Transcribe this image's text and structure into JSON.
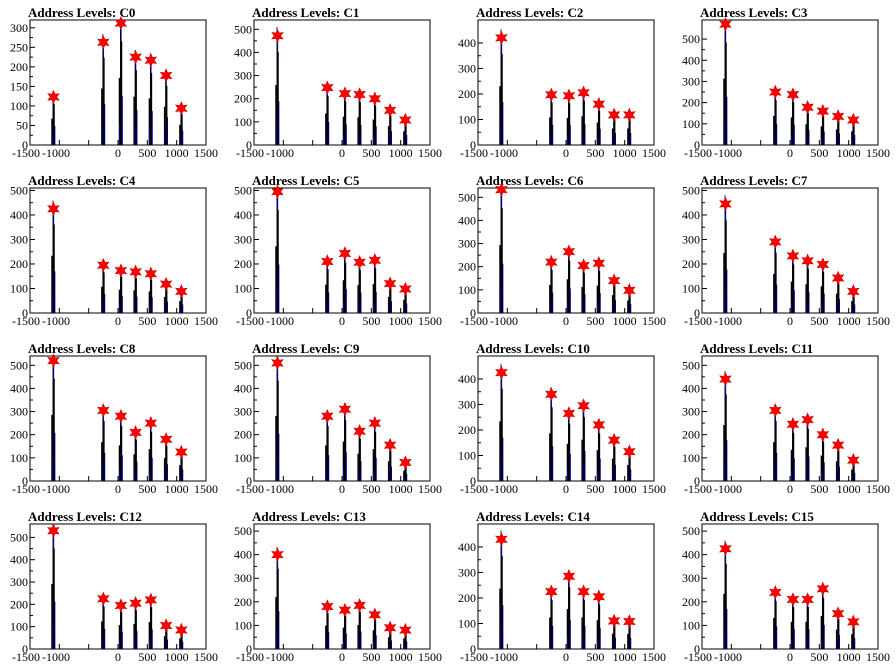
{
  "figure": {
    "title_prefix": "Address Levels: ",
    "x_ticks": [
      -1500,
      -1000,
      500,
      1000,
      1500
    ],
    "x_tick_labels": [
      "-1500",
      "-1000",
      "500",
      "1000",
      "1500"
    ],
    "x_tick_labels_center": [
      "0"
    ],
    "x_range": [
      -1500,
      1500
    ],
    "peak_x": [
      -1100,
      -250,
      50,
      300,
      560,
      820,
      1080
    ],
    "histogram_color": "#0000cc",
    "marker_color": "#ff0000",
    "marker_outline": "#cc0000"
  },
  "chart_data": [
    {
      "type": "bar",
      "title": "Address Levels: C0",
      "yticks": [
        0,
        50,
        100,
        150,
        200,
        250,
        300
      ],
      "ylim": [
        0,
        320
      ],
      "peaks_y": [
        123,
        263,
        312,
        225,
        217,
        178,
        94
      ]
    },
    {
      "type": "bar",
      "title": "Address Levels: C1",
      "yticks": [
        0,
        100,
        200,
        300,
        400,
        500
      ],
      "ylim": [
        0,
        540
      ],
      "peaks_y": [
        472,
        248,
        222,
        218,
        200,
        150,
        108
      ]
    },
    {
      "type": "bar",
      "title": "Address Levels: C2",
      "yticks": [
        0,
        100,
        200,
        300,
        400
      ],
      "ylim": [
        0,
        490
      ],
      "peaks_y": [
        420,
        197,
        193,
        205,
        160,
        118,
        118
      ]
    },
    {
      "type": "bar",
      "title": "Address Levels: C3",
      "yticks": [
        0,
        100,
        200,
        300,
        400,
        500
      ],
      "ylim": [
        0,
        590
      ],
      "peaks_y": [
        570,
        250,
        238,
        178,
        160,
        135,
        118
      ]
    },
    {
      "type": "bar",
      "title": "Address Levels: C4",
      "yticks": [
        0,
        100,
        200,
        300,
        400,
        500
      ],
      "ylim": [
        0,
        510
      ],
      "peaks_y": [
        425,
        195,
        173,
        168,
        160,
        118,
        88
      ]
    },
    {
      "type": "bar",
      "title": "Address Levels: C5",
      "yticks": [
        0,
        100,
        200,
        300,
        400,
        500
      ],
      "ylim": [
        0,
        510
      ],
      "peaks_y": [
        495,
        210,
        243,
        207,
        215,
        120,
        98
      ]
    },
    {
      "type": "bar",
      "title": "Address Levels: C6",
      "yticks": [
        0,
        100,
        200,
        300,
        400,
        500
      ],
      "ylim": [
        0,
        540
      ],
      "peaks_y": [
        533,
        220,
        265,
        205,
        215,
        140,
        98
      ]
    },
    {
      "type": "bar",
      "title": "Address Levels: C7",
      "yticks": [
        0,
        100,
        200,
        300,
        400,
        500
      ],
      "ylim": [
        0,
        510
      ],
      "peaks_y": [
        445,
        290,
        233,
        213,
        198,
        143,
        88
      ]
    },
    {
      "type": "bar",
      "title": "Address Levels: C8",
      "yticks": [
        0,
        100,
        200,
        300,
        400,
        500
      ],
      "ylim": [
        0,
        540
      ],
      "peaks_y": [
        520,
        305,
        280,
        210,
        250,
        180,
        125
      ]
    },
    {
      "type": "bar",
      "title": "Address Levels: C9",
      "yticks": [
        0,
        100,
        200,
        300,
        400,
        500
      ],
      "ylim": [
        0,
        540
      ],
      "peaks_y": [
        510,
        280,
        310,
        215,
        250,
        155,
        80
      ]
    },
    {
      "type": "bar",
      "title": "Address Levels: C10",
      "yticks": [
        0,
        100,
        200,
        300,
        400
      ],
      "ylim": [
        0,
        490
      ],
      "peaks_y": [
        425,
        340,
        265,
        295,
        220,
        160,
        115
      ]
    },
    {
      "type": "bar",
      "title": "Address Levels: C11",
      "yticks": [
        0,
        100,
        200,
        300,
        400,
        500
      ],
      "ylim": [
        0,
        540
      ],
      "peaks_y": [
        440,
        305,
        245,
        265,
        200,
        155,
        90
      ]
    },
    {
      "type": "bar",
      "title": "Address Levels: C12",
      "yticks": [
        0,
        100,
        200,
        300,
        400,
        500
      ],
      "ylim": [
        0,
        560
      ],
      "peaks_y": [
        530,
        225,
        195,
        205,
        220,
        105,
        85
      ]
    },
    {
      "type": "bar",
      "title": "Address Levels: C13",
      "yticks": [
        0,
        100,
        200,
        300,
        400,
        500
      ],
      "ylim": [
        0,
        530
      ],
      "peaks_y": [
        400,
        180,
        165,
        185,
        145,
        90,
        80
      ]
    },
    {
      "type": "bar",
      "title": "Address Levels: C14",
      "yticks": [
        0,
        100,
        200,
        300,
        400
      ],
      "ylim": [
        0,
        490
      ],
      "peaks_y": [
        430,
        225,
        285,
        225,
        205,
        110,
        108
      ]
    },
    {
      "type": "bar",
      "title": "Address Levels: C15",
      "yticks": [
        0,
        100,
        200,
        300,
        400,
        500
      ],
      "ylim": [
        0,
        530
      ],
      "peaks_y": [
        425,
        240,
        210,
        210,
        255,
        150,
        115
      ]
    }
  ]
}
